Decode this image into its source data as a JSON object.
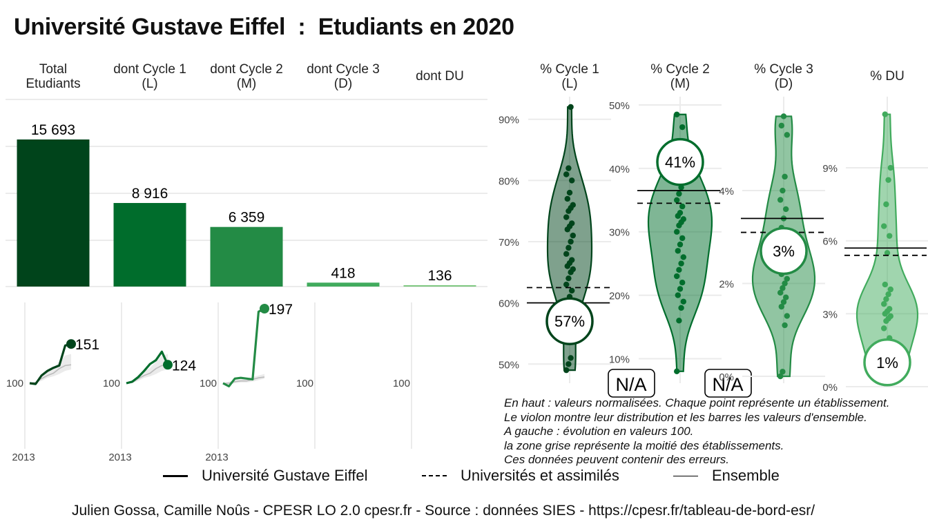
{
  "title": "Université Gustave Eiffel  :  Etudiants en 2020",
  "colors": {
    "total": "#00441b",
    "cycle1": "#006d2c",
    "cycle2": "#238b45",
    "cycle3": "#41ab5d",
    "du": "#74c476",
    "grid": "#ebebeb",
    "band": "#ebebeb"
  },
  "chart_data": [
    {
      "type": "bar",
      "title": "Etudiants en 2020",
      "categories": [
        "Total\nEtudiants",
        "dont Cycle 1\n(L)",
        "dont Cycle 2\n(M)",
        "dont Cycle 3\n(D)",
        "dont DU"
      ],
      "values": [
        15693,
        8916,
        6359,
        418,
        136
      ],
      "value_labels": [
        "15 693",
        "8 916",
        "6 359",
        "418",
        "136"
      ],
      "grid": true
    },
    {
      "type": "line",
      "title": "Évolution en valeurs 100",
      "panels": [
        {
          "category": "Total Etudiants",
          "x": [
            2013,
            2014,
            2015,
            2016,
            2017,
            2018,
            2019,
            2020
          ],
          "y": [
            100,
            99,
            110,
            116,
            120,
            123,
            149,
            151
          ],
          "end_label": "151",
          "band_low": [
            100,
            100,
            103,
            107,
            109,
            112,
            116,
            118
          ],
          "band_high": [
            100,
            102,
            110,
            116,
            120,
            128,
            136,
            138
          ],
          "median": [
            100,
            101,
            106,
            110,
            113,
            119,
            123,
            124
          ]
        },
        {
          "category": "dont Cycle 1 (L)",
          "x": [
            2013,
            2014,
            2015,
            2016,
            2017,
            2018,
            2019,
            2020
          ],
          "y": [
            100,
            102,
            108,
            116,
            125,
            130,
            141,
            124
          ],
          "end_label": "124",
          "band_low": [
            100,
            100,
            103,
            107,
            109,
            112,
            116,
            118
          ],
          "band_high": [
            100,
            102,
            110,
            116,
            120,
            128,
            136,
            138
          ],
          "median": [
            100,
            101,
            106,
            110,
            113,
            119,
            123,
            124
          ]
        },
        {
          "category": "dont Cycle 2 (M)",
          "x": [
            2013,
            2014,
            2015,
            2016,
            2017,
            2018,
            2019,
            2020
          ],
          "y": [
            100,
            96,
            106,
            107,
            106,
            105,
            193,
            197
          ],
          "end_label": "197",
          "band_low": [
            100,
            98,
            100,
            101,
            101,
            102,
            104,
            106
          ],
          "band_high": [
            100,
            102,
            104,
            105,
            106,
            108,
            110,
            112
          ],
          "median": [
            100,
            100,
            102,
            103,
            103,
            105,
            107,
            108
          ]
        },
        {
          "category": "dont Cycle 3 (D)",
          "na": "N/A"
        },
        {
          "category": "dont DU",
          "na": "N/A"
        }
      ],
      "ylabel_tick": "100",
      "xlabel_tick": "2013"
    },
    {
      "type": "scatter",
      "title": "Valeurs normalisées (violon)",
      "panels": [
        {
          "label": "% Cycle 1\n(L)",
          "ylim": [
            48,
            92
          ],
          "ticks": [
            50,
            60,
            70,
            80,
            90
          ],
          "tick_labels": [
            "50%",
            "60%",
            "70%",
            "80%",
            "90%"
          ],
          "ensemble": 60,
          "universites": 62.5,
          "value": 57,
          "value_label": "57%",
          "points": [
            49,
            50,
            51,
            57,
            60,
            61,
            62,
            63,
            64,
            65,
            65.5,
            66,
            66.5,
            67,
            68,
            69,
            70,
            71,
            72,
            72.5,
            73,
            74,
            75,
            75.5,
            76,
            77,
            78,
            80,
            81,
            82,
            92
          ]
        },
        {
          "label": "% Cycle 2\n(M)",
          "ylim": [
            7,
            50
          ],
          "ticks": [
            10,
            20,
            30,
            40,
            50
          ],
          "tick_labels": [
            "10%",
            "20%",
            "30%",
            "40%",
            "50%"
          ],
          "ensemble": 36.5,
          "universites": 34.5,
          "value": 41,
          "value_label": "41%",
          "points": [
            8,
            16,
            18,
            19,
            20,
            21,
            22,
            23,
            24,
            25,
            26,
            27,
            28,
            29,
            30,
            31,
            31.5,
            32,
            32.5,
            33,
            34,
            35,
            36,
            37,
            38,
            39,
            40,
            46.5,
            48.5
          ]
        },
        {
          "label": "% Cycle 3\n(D)",
          "ylim": [
            0,
            5.8
          ],
          "ticks": [
            0,
            2,
            4
          ],
          "tick_labels": [
            "0%",
            "2%",
            "4%"
          ],
          "ensemble": 3.4,
          "universites": 3.1,
          "value": 2.7,
          "value_label": "3%",
          "points": [
            0,
            0.1,
            1.1,
            1.3,
            1.5,
            1.6,
            1.7,
            1.8,
            1.9,
            2.0,
            2.1,
            2.2,
            2.3,
            2.4,
            2.5,
            2.6,
            2.8,
            3.0,
            3.2,
            3.4,
            3.6,
            3.8,
            4.0,
            4.3,
            5.2,
            5.4,
            5.6
          ]
        },
        {
          "label": "% DU",
          "ylim": [
            0,
            11.5
          ],
          "ticks": [
            0,
            3,
            6,
            9
          ],
          "tick_labels": [
            "0%",
            "3%",
            "6%",
            "9%"
          ],
          "ensemble": 5.7,
          "universites": 5.4,
          "value": 1,
          "value_label": "1%",
          "points": [
            0.3,
            0.5,
            0.8,
            1.0,
            1.2,
            1.6,
            2.0,
            2.4,
            2.7,
            2.8,
            2.9,
            3.0,
            3.1,
            3.2,
            3.4,
            3.6,
            3.8,
            4.0,
            4.2,
            5.5,
            6.2,
            6.6,
            7.5,
            8.5,
            9.0,
            11.2
          ]
        }
      ]
    }
  ],
  "notes": [
    "En haut : valeurs normalisées. Chaque point représente un établissement.",
    "Le violon montre leur distribution et les barres les valeurs d'ensemble.",
    "A gauche : évolution en valeurs 100.",
    "la zone grise représente la moitié des établissements.",
    "Ces données peuvent contenir des erreurs."
  ],
  "legend": [
    {
      "label": "Université Gustave Eiffel",
      "style": "solid"
    },
    {
      "label": "Universités et assimilés",
      "style": "dashed"
    },
    {
      "label": "Ensemble",
      "style": "thin"
    }
  ],
  "caption": "Julien Gossa, Camille Noûs - CPESR LO 2.0 cpesr.fr - Source : données SIES - https://cpesr.fr/tableau-de-bord-esr/"
}
